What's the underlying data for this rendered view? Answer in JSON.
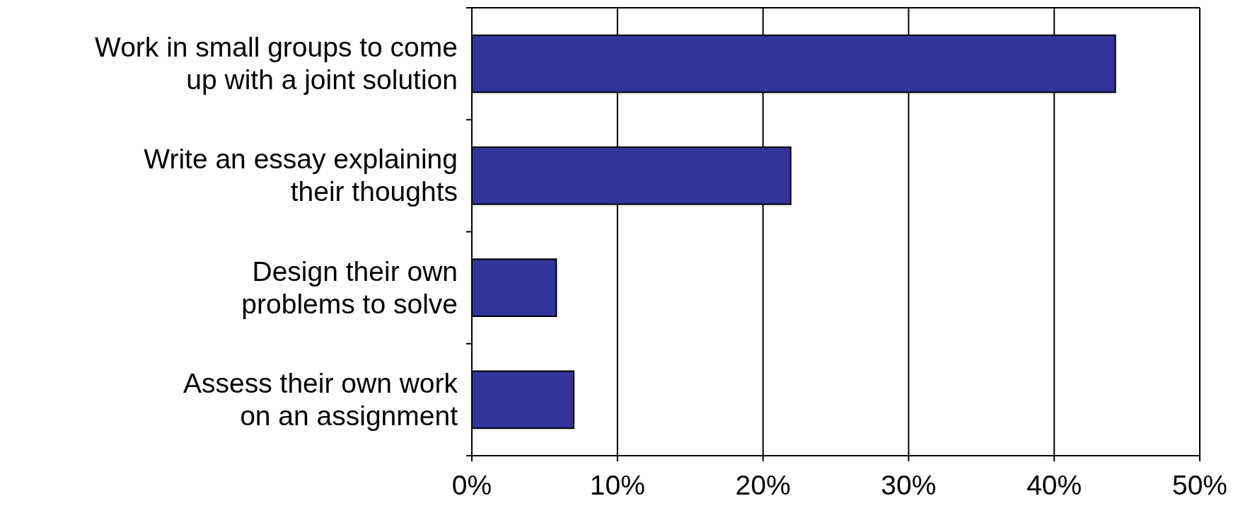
{
  "chart_data": {
    "type": "bar",
    "orientation": "horizontal",
    "categories": [
      "Work in small groups to come\nup with a joint solution",
      "Write an essay explaining\ntheir thoughts",
      "Design their own\nproblems to solve",
      "Assess their own work\non an assignment"
    ],
    "values": [
      44.2,
      21.9,
      5.8,
      7.0
    ],
    "color": "#333399",
    "xlim": [
      0,
      50
    ],
    "xticks": [
      {
        "value": 0,
        "label": "0%"
      },
      {
        "value": 10,
        "label": "10%"
      },
      {
        "value": 20,
        "label": "20%"
      },
      {
        "value": 30,
        "label": "30%"
      },
      {
        "value": 40,
        "label": "40%"
      },
      {
        "value": 50,
        "label": "50%"
      }
    ],
    "grid": "x"
  }
}
